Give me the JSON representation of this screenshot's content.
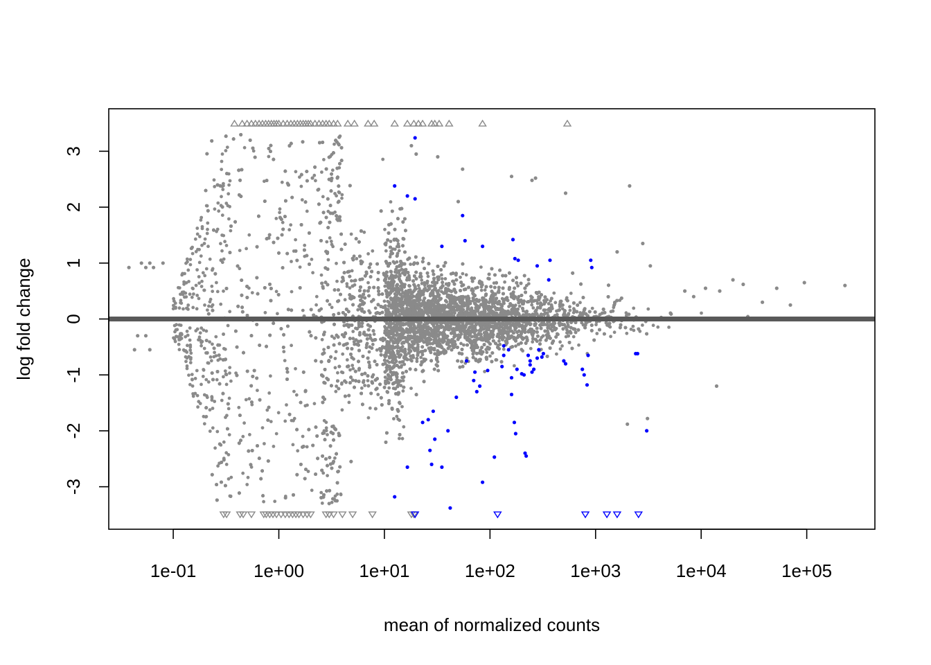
{
  "chart_data": {
    "type": "scatter",
    "title": "",
    "xlabel": "mean of normalized counts",
    "ylabel": "log fold change",
    "x_scale": "log10",
    "xlim": [
      0.0245,
      442000
    ],
    "ylim": [
      -3.76,
      3.76
    ],
    "x_ticks": [
      {
        "value": 0.1,
        "label": "1e-01"
      },
      {
        "value": 1,
        "label": "1e+00"
      },
      {
        "value": 10,
        "label": "1e+01"
      },
      {
        "value": 100,
        "label": "1e+02"
      },
      {
        "value": 1000,
        "label": "1e+03"
      },
      {
        "value": 10000,
        "label": "1e+04"
      },
      {
        "value": 100000,
        "label": "1e+05"
      }
    ],
    "y_ticks": [
      {
        "value": -3,
        "label": "-3"
      },
      {
        "value": -2,
        "label": "-2"
      },
      {
        "value": -1,
        "label": "-1"
      },
      {
        "value": 0,
        "label": "0"
      },
      {
        "value": 1,
        "label": "1"
      },
      {
        "value": 2,
        "label": "2"
      },
      {
        "value": 3,
        "label": "3"
      }
    ],
    "reference_line": {
      "y": 0,
      "color": "#595959"
    },
    "grid": false,
    "legend": "none",
    "colors": {
      "not_significant": "#8a8a8a",
      "significant": "#0000ff",
      "axis": "#000000"
    },
    "clipped_value_upper": 3.5,
    "clipped_value_lower": -3.5,
    "series": [
      {
        "key": "significant",
        "color": "#0000ff",
        "marker": "circle",
        "x": [
          19.5,
          12.5,
          16.5,
          19.5,
          55,
          58,
          85,
          165,
          172,
          185,
          35,
          370,
          280,
          360,
          900,
          920,
          850,
          750,
          500,
          320,
          280,
          240,
          200,
          180,
          160,
          130,
          95,
          80,
          75,
          70,
          72,
          60,
          150,
          135,
          240,
          260,
          310,
          520,
          780,
          830,
          26,
          29,
          27,
          30,
          35,
          40,
          48,
          23,
          28,
          12.5,
          16.5,
          42,
          85,
          110,
          175,
          220,
          215,
          3050,
          2500,
          2400,
          160,
          170,
          290,
          135,
          250,
          230,
          210
        ],
        "y": [
          3.24,
          2.38,
          2.2,
          2.15,
          1.85,
          1.4,
          1.3,
          1.42,
          1.08,
          1.05,
          1.3,
          1.05,
          0.95,
          0.7,
          1.05,
          0.92,
          -0.65,
          -0.9,
          -0.75,
          -0.62,
          -0.7,
          -0.75,
          -0.98,
          -0.9,
          -1.05,
          -0.85,
          -0.92,
          -1.2,
          -1.3,
          -1.1,
          -0.95,
          -0.75,
          -0.55,
          -0.65,
          -0.82,
          -0.9,
          -0.68,
          -0.8,
          -1.0,
          -1.18,
          -1.8,
          -1.65,
          -2.35,
          -2.15,
          -2.65,
          -2.0,
          -1.4,
          -1.85,
          -2.6,
          -3.18,
          -2.65,
          -3.38,
          -2.92,
          -2.47,
          -2.05,
          -2.45,
          -2.4,
          -2.0,
          -0.62,
          -0.62,
          -1.35,
          -1.85,
          -0.55,
          -0.48,
          -0.95,
          -0.65,
          -1.0
        ]
      },
      {
        "key": "significant-clipped-low",
        "color": "#0000ff",
        "marker": "triangle-down",
        "x": [
          19.5,
          118,
          800,
          1280,
          1600,
          2550
        ],
        "y": [
          -3.5,
          -3.5,
          -3.5,
          -3.5,
          -3.5,
          -3.5
        ]
      },
      {
        "key": "clipped-high",
        "color": "#8a8a8a",
        "marker": "triangle-up",
        "x": [
          0.38,
          0.45,
          0.5,
          0.55,
          0.6,
          0.65,
          0.7,
          0.75,
          0.8,
          0.85,
          0.9,
          0.95,
          1.0,
          1.1,
          1.2,
          1.3,
          1.4,
          1.5,
          1.6,
          1.7,
          1.8,
          1.9,
          2.0,
          2.2,
          2.4,
          2.6,
          2.8,
          3.0,
          3.3,
          3.6,
          4.5,
          5.2,
          7.0,
          8.0,
          12.5,
          16.5,
          19.0,
          21.0,
          23.0,
          28.0,
          30.0,
          33.0,
          41.0,
          85.0,
          540.0
        ],
        "y": [
          3.5,
          3.5,
          3.5,
          3.5,
          3.5,
          3.5,
          3.5,
          3.5,
          3.5,
          3.5,
          3.5,
          3.5,
          3.5,
          3.5,
          3.5,
          3.5,
          3.5,
          3.5,
          3.5,
          3.5,
          3.5,
          3.5,
          3.5,
          3.5,
          3.5,
          3.5,
          3.5,
          3.5,
          3.5,
          3.5,
          3.5,
          3.5,
          3.5,
          3.5,
          3.5,
          3.5,
          3.5,
          3.5,
          3.5,
          3.5,
          3.5,
          3.5,
          3.5,
          3.5,
          3.5
        ]
      },
      {
        "key": "clipped-low",
        "color": "#8a8a8a",
        "marker": "triangle-down",
        "x": [
          0.3,
          0.32,
          0.43,
          0.46,
          0.55,
          0.72,
          0.76,
          0.82,
          0.88,
          0.95,
          1.05,
          1.15,
          1.25,
          1.35,
          1.45,
          1.55,
          1.7,
          1.85,
          2.0,
          2.8,
          3.0,
          3.3,
          4.0,
          5.0,
          7.7,
          18.0,
          19.0
        ],
        "y": [
          -3.5,
          -3.5,
          -3.5,
          -3.5,
          -3.5,
          -3.5,
          -3.5,
          -3.5,
          -3.5,
          -3.5,
          -3.5,
          -3.5,
          -3.5,
          -3.5,
          -3.5,
          -3.5,
          -3.5,
          -3.5,
          -3.5,
          -3.5,
          -3.5,
          -3.5,
          -3.5,
          -3.5,
          -3.5,
          -3.5,
          -3.5
        ]
      },
      {
        "key": "not-significant-isolated",
        "color": "#8a8a8a",
        "marker": "circle",
        "x": [
          0.038,
          0.05,
          0.055,
          0.06,
          0.065,
          0.08,
          0.043,
          0.046,
          0.055,
          0.06,
          230000,
          95000,
          70000,
          52000,
          38000,
          25000,
          20000,
          15000,
          11000,
          8500,
          7000,
          3300,
          2800,
          1600,
          520,
          270,
          250,
          160,
          55,
          50,
          18,
          20,
          32,
          2000,
          2100,
          14000,
          3100
        ],
        "y": [
          0.92,
          1.0,
          0.92,
          1.0,
          0.92,
          1.0,
          -0.55,
          -0.3,
          -0.3,
          -0.55,
          0.6,
          0.65,
          0.25,
          0.55,
          0.3,
          0.62,
          0.7,
          0.5,
          0.55,
          0.4,
          0.5,
          0.95,
          1.35,
          1.2,
          2.25,
          2.52,
          2.48,
          2.55,
          2.68,
          2.1,
          3.1,
          2.95,
          2.9,
          -1.88,
          2.38,
          -1.2,
          -1.78
        ]
      }
    ],
    "density_note_points": {
      "key": "not-significant",
      "color": "#8a8a8a",
      "marker": "circle",
      "shown_as": "dense point cloud centred on log fold change 0, spread narrowing as mean count increases"
    }
  }
}
